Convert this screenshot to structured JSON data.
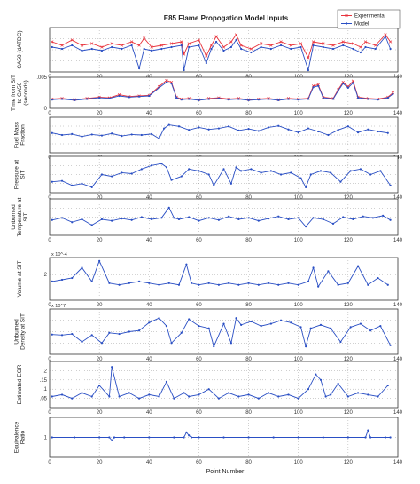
{
  "figure": {
    "title": "E85 Flame Propogation Model Inputs",
    "xlabel": "Point Number",
    "legend": {
      "placement": "top-right",
      "entries": [
        {
          "label": "Experimental",
          "color": "#e8323c",
          "marker": "x"
        },
        {
          "label": "Model",
          "color": "#2a4fc4",
          "marker": "dot"
        }
      ]
    }
  },
  "chart_data": [
    {
      "type": "line",
      "ylabel": "CA50 (dATDC)",
      "xlim": [
        0,
        140
      ],
      "xticks": [
        0,
        20,
        40,
        60,
        80,
        100,
        120,
        140
      ],
      "ylim": [
        -5,
        20
      ],
      "yticks": [],
      "grid": true,
      "series": [
        {
          "name": "Experimental",
          "color": "#e8323c",
          "x": [
            1,
            5,
            9,
            13,
            17,
            21,
            25,
            29,
            33,
            36,
            38,
            41,
            45,
            49,
            53,
            54,
            56,
            60,
            63,
            65,
            67,
            70,
            73,
            75,
            77,
            81,
            85,
            89,
            93,
            97,
            101,
            104,
            106,
            110,
            114,
            118,
            122,
            125,
            127,
            131,
            135,
            137
          ],
          "y": [
            12,
            10,
            13,
            10,
            11,
            9,
            11,
            10,
            12,
            10,
            14,
            9,
            10,
            11,
            12,
            5,
            11,
            13,
            4,
            10,
            15,
            9,
            12,
            16,
            10,
            8,
            11,
            10,
            12,
            10,
            11,
            3,
            12,
            11,
            10,
            12,
            11,
            9,
            12,
            10,
            16,
            12
          ]
        },
        {
          "name": "Model",
          "color": "#2a4fc4",
          "x": [
            1,
            5,
            9,
            13,
            17,
            21,
            25,
            29,
            33,
            36,
            38,
            41,
            45,
            49,
            53,
            54,
            56,
            60,
            63,
            65,
            67,
            70,
            73,
            75,
            77,
            81,
            85,
            89,
            93,
            97,
            101,
            104,
            106,
            110,
            114,
            118,
            122,
            125,
            127,
            131,
            135,
            137
          ],
          "y": [
            9,
            8,
            10,
            7,
            8,
            7,
            9,
            8,
            10,
            -3,
            8,
            7,
            8,
            9,
            10,
            -4,
            9,
            10,
            0,
            8,
            12,
            7,
            9,
            13,
            8,
            6,
            9,
            8,
            10,
            8,
            9,
            -4,
            10,
            9,
            8,
            10,
            8,
            6,
            9,
            8,
            15,
            8
          ]
        }
      ]
    },
    {
      "type": "line",
      "ylabel": "Time from SIT to CA50 (seconds)",
      "xlim": [
        0,
        140
      ],
      "xticks": [
        0,
        20,
        40,
        60,
        80,
        100,
        120,
        140
      ],
      "ylim": [
        0,
        0.005
      ],
      "yticks": [
        0,
        0.005
      ],
      "grid": true,
      "series": [
        {
          "name": "Experimental",
          "color": "#e8323c",
          "x": [
            1,
            5,
            10,
            15,
            20,
            24,
            28,
            32,
            36,
            40,
            44,
            47,
            49,
            51,
            53,
            56,
            60,
            64,
            68,
            72,
            76,
            80,
            84,
            88,
            92,
            96,
            100,
            104,
            106,
            108,
            110,
            114,
            116,
            118,
            120,
            122,
            124,
            128,
            132,
            136,
            138
          ],
          "y": [
            0.0015,
            0.0016,
            0.0014,
            0.0016,
            0.0018,
            0.0017,
            0.0022,
            0.0019,
            0.002,
            0.0021,
            0.0035,
            0.0045,
            0.0042,
            0.0018,
            0.0015,
            0.0016,
            0.0014,
            0.0016,
            0.0017,
            0.0015,
            0.0016,
            0.0014,
            0.0015,
            0.0016,
            0.0014,
            0.0016,
            0.0015,
            0.0016,
            0.0036,
            0.0038,
            0.0018,
            0.0016,
            0.003,
            0.0042,
            0.0035,
            0.0044,
            0.0018,
            0.0016,
            0.0015,
            0.0018,
            0.0025
          ]
        },
        {
          "name": "Model",
          "color": "#2a4fc4",
          "x": [
            1,
            5,
            10,
            15,
            20,
            24,
            28,
            32,
            36,
            40,
            44,
            47,
            49,
            51,
            53,
            56,
            60,
            64,
            68,
            72,
            76,
            80,
            84,
            88,
            92,
            96,
            100,
            104,
            106,
            108,
            110,
            114,
            116,
            118,
            120,
            122,
            124,
            128,
            132,
            136,
            138
          ],
          "y": [
            0.0014,
            0.0015,
            0.0013,
            0.0015,
            0.0017,
            0.0016,
            0.002,
            0.0018,
            0.0019,
            0.002,
            0.0033,
            0.0042,
            0.004,
            0.0017,
            0.0014,
            0.0015,
            0.0013,
            0.0015,
            0.0016,
            0.0014,
            0.0015,
            0.0013,
            0.0014,
            0.0015,
            0.0013,
            0.0015,
            0.0014,
            0.0015,
            0.0034,
            0.0036,
            0.0017,
            0.0015,
            0.0028,
            0.004,
            0.0033,
            0.0041,
            0.0017,
            0.0015,
            0.0014,
            0.0017,
            0.0023
          ]
        }
      ]
    },
    {
      "type": "line",
      "ylabel": "Fuel Mass Fraction",
      "xlim": [
        0,
        140
      ],
      "xticks": [
        0,
        20,
        40,
        60,
        80,
        100,
        120,
        140
      ],
      "ylim": [
        0.04,
        0.11
      ],
      "yticks": [],
      "grid": true,
      "series": [
        {
          "name": "Model",
          "color": "#2a4fc4",
          "x": [
            1,
            5,
            9,
            13,
            17,
            21,
            25,
            29,
            33,
            37,
            41,
            44,
            46,
            48,
            52,
            56,
            60,
            64,
            68,
            72,
            76,
            80,
            84,
            88,
            92,
            96,
            100,
            104,
            108,
            112,
            116,
            120,
            124,
            128,
            132,
            136
          ],
          "y": [
            0.079,
            0.075,
            0.077,
            0.072,
            0.076,
            0.074,
            0.078,
            0.073,
            0.076,
            0.075,
            0.077,
            0.068,
            0.088,
            0.095,
            0.092,
            0.085,
            0.09,
            0.086,
            0.088,
            0.092,
            0.084,
            0.087,
            0.083,
            0.09,
            0.093,
            0.086,
            0.08,
            0.088,
            0.082,
            0.075,
            0.085,
            0.092,
            0.08,
            0.086,
            0.082,
            0.079
          ]
        }
      ]
    },
    {
      "type": "line",
      "ylabel": "Pressure at SIT",
      "xlim": [
        0,
        140
      ],
      "xticks": [
        0,
        20,
        40,
        60,
        80,
        100,
        120,
        140
      ],
      "ylim": [
        0,
        40
      ],
      "yticks": [],
      "grid": true,
      "series": [
        {
          "name": "Model",
          "color": "#2a4fc4",
          "x": [
            1,
            5,
            9,
            13,
            17,
            21,
            25,
            29,
            33,
            37,
            41,
            45,
            47,
            49,
            53,
            56,
            60,
            64,
            66,
            70,
            73,
            75,
            77,
            81,
            85,
            89,
            93,
            97,
            101,
            103,
            105,
            109,
            113,
            117,
            121,
            125,
            129,
            133,
            137
          ],
          "y": [
            12,
            13,
            8,
            10,
            6,
            20,
            18,
            22,
            21,
            26,
            30,
            32,
            28,
            14,
            18,
            26,
            24,
            20,
            8,
            26,
            10,
            28,
            24,
            26,
            22,
            24,
            20,
            22,
            16,
            6,
            20,
            24,
            22,
            12,
            24,
            26,
            20,
            24,
            8
          ]
        }
      ]
    },
    {
      "type": "line",
      "ylabel": "Unburned Temperature at SIT",
      "xlim": [
        0,
        140
      ],
      "xticks": [
        0,
        20,
        40,
        60,
        80,
        100,
        120,
        140
      ],
      "ylim": [
        400,
        900
      ],
      "yticks": [],
      "grid": true,
      "series": [
        {
          "name": "Model",
          "color": "#2a4fc4",
          "x": [
            1,
            5,
            9,
            13,
            17,
            21,
            25,
            29,
            33,
            37,
            41,
            45,
            48,
            50,
            52,
            56,
            60,
            64,
            68,
            72,
            76,
            80,
            84,
            88,
            92,
            96,
            100,
            103,
            106,
            110,
            114,
            118,
            122,
            126,
            130,
            134,
            137
          ],
          "y": [
            610,
            640,
            580,
            620,
            540,
            620,
            600,
            630,
            610,
            650,
            620,
            640,
            780,
            640,
            620,
            650,
            600,
            640,
            610,
            660,
            620,
            640,
            600,
            630,
            660,
            620,
            640,
            520,
            640,
            620,
            560,
            650,
            620,
            660,
            640,
            670,
            610
          ]
        }
      ]
    },
    {
      "type": "line",
      "ylabel": "Volume at SIT",
      "xlim": [
        0,
        140
      ],
      "xticks": [
        0,
        20,
        40,
        60,
        80,
        100,
        120,
        140
      ],
      "ylim": [
        0.5,
        3
      ],
      "yticks": [
        2
      ],
      "exponent": "x 10^-4",
      "grid": true,
      "series": [
        {
          "name": "Model",
          "color": "#2a4fc4",
          "x": [
            1,
            5,
            9,
            13,
            17,
            20,
            24,
            28,
            32,
            36,
            40,
            44,
            48,
            52,
            55,
            57,
            60,
            64,
            68,
            72,
            76,
            80,
            84,
            88,
            92,
            96,
            100,
            104,
            106,
            108,
            112,
            116,
            120,
            124,
            128,
            132,
            136
          ],
          "y": [
            1.6,
            1.7,
            1.8,
            2.4,
            1.6,
            2.8,
            1.5,
            1.4,
            1.5,
            1.6,
            1.5,
            1.4,
            1.5,
            1.4,
            2.6,
            1.5,
            1.4,
            1.5,
            1.4,
            1.5,
            1.4,
            1.5,
            1.4,
            1.5,
            1.4,
            1.5,
            1.4,
            1.6,
            2.4,
            1.3,
            2.2,
            1.4,
            1.5,
            2.5,
            1.4,
            1.8,
            1.4
          ]
        }
      ]
    },
    {
      "type": "line",
      "ylabel": "Unburned Density at SIT",
      "xlim": [
        0,
        140
      ],
      "xticks": [
        0,
        20,
        40,
        60,
        80,
        100,
        120,
        140
      ],
      "ylim": [
        0,
        8
      ],
      "yticks": [],
      "exponent": "x 10^7",
      "grid": true,
      "series": [
        {
          "name": "Model",
          "color": "#2a4fc4",
          "x": [
            1,
            5,
            9,
            13,
            17,
            21,
            24,
            28,
            32,
            36,
            40,
            44,
            47,
            49,
            53,
            56,
            60,
            64,
            66,
            70,
            73,
            75,
            77,
            81,
            85,
            89,
            93,
            97,
            101,
            103,
            105,
            109,
            113,
            117,
            121,
            125,
            129,
            133,
            137
          ],
          "y": [
            3.5,
            3.4,
            3.6,
            2.2,
            3.4,
            2.0,
            3.8,
            3.6,
            4.0,
            4.2,
            5.6,
            6.4,
            5.0,
            2.0,
            3.8,
            6.2,
            5.0,
            4.6,
            1.4,
            5.4,
            2.0,
            6.4,
            5.2,
            5.8,
            5.0,
            5.4,
            6.0,
            5.6,
            4.8,
            1.4,
            4.6,
            5.2,
            4.6,
            2.2,
            4.8,
            5.4,
            4.2,
            5.0,
            1.6
          ]
        }
      ]
    },
    {
      "type": "line",
      "ylabel": "Estimated EGR",
      "xlim": [
        0,
        140
      ],
      "xticks": [
        0,
        20,
        40,
        60,
        80,
        100,
        120,
        140
      ],
      "ylim": [
        0,
        0.25
      ],
      "yticks": [
        0.2,
        0.15,
        0.1,
        0.05
      ],
      "grid": true,
      "series": [
        {
          "name": "Model",
          "color": "#2a4fc4",
          "x": [
            1,
            5,
            9,
            13,
            17,
            20,
            24,
            25,
            28,
            32,
            36,
            40,
            44,
            47,
            50,
            54,
            56,
            60,
            64,
            68,
            72,
            76,
            80,
            84,
            88,
            92,
            96,
            100,
            104,
            107,
            109,
            111,
            113,
            116,
            120,
            124,
            128,
            132,
            136
          ],
          "y": [
            0.06,
            0.07,
            0.05,
            0.08,
            0.06,
            0.12,
            0.06,
            0.22,
            0.06,
            0.08,
            0.05,
            0.07,
            0.06,
            0.14,
            0.05,
            0.08,
            0.06,
            0.07,
            0.1,
            0.05,
            0.08,
            0.06,
            0.07,
            0.05,
            0.08,
            0.06,
            0.07,
            0.05,
            0.1,
            0.18,
            0.15,
            0.06,
            0.07,
            0.13,
            0.06,
            0.08,
            0.07,
            0.06,
            0.12
          ]
        }
      ]
    },
    {
      "type": "line",
      "ylabel": "Equivalence Ratio",
      "xlim": [
        0,
        140
      ],
      "xticks": [
        0,
        20,
        40,
        60,
        80,
        100,
        120,
        140
      ],
      "ylim": [
        0,
        2
      ],
      "yticks": [
        1
      ],
      "grid": true,
      "series": [
        {
          "name": "Model",
          "color": "#2a4fc4",
          "x": [
            1,
            10,
            20,
            24,
            25,
            26,
            30,
            40,
            50,
            54,
            55,
            56,
            57,
            60,
            70,
            80,
            90,
            100,
            110,
            120,
            127,
            128,
            129,
            135,
            137
          ],
          "y": [
            1,
            1,
            1,
            1,
            0.85,
            1,
            1,
            1,
            1,
            1,
            1.25,
            1.1,
            1,
            1,
            1,
            1,
            1,
            1,
            1,
            1,
            1,
            1.35,
            1,
            1,
            1
          ]
        }
      ]
    }
  ]
}
